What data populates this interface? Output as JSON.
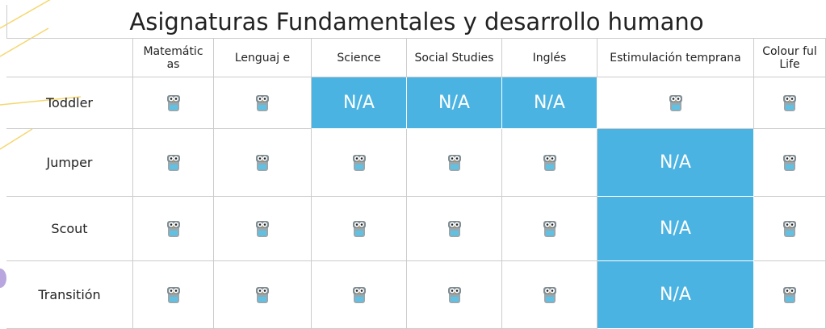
{
  "header": {
    "title": "Asignaturas Fundamentales y desarrollo humano"
  },
  "table": {
    "columns": [
      "Matemátic as",
      "Lenguaj e",
      "Science",
      "Social Studies",
      "Inglés",
      "Estimulación temprana",
      "Colour ful Life"
    ],
    "rows": [
      {
        "label": "Toddler",
        "cells": [
          null,
          null,
          "N/A",
          "N/A",
          "N/A",
          null,
          null
        ]
      },
      {
        "label": "Jumper",
        "cells": [
          null,
          null,
          null,
          null,
          null,
          "N/A",
          null
        ]
      },
      {
        "label": "Scout",
        "cells": [
          null,
          null,
          null,
          null,
          null,
          "N/A",
          null
        ]
      },
      {
        "label": "Transitión",
        "cells": [
          null,
          null,
          null,
          null,
          null,
          "N/A",
          null
        ]
      }
    ]
  }
}
